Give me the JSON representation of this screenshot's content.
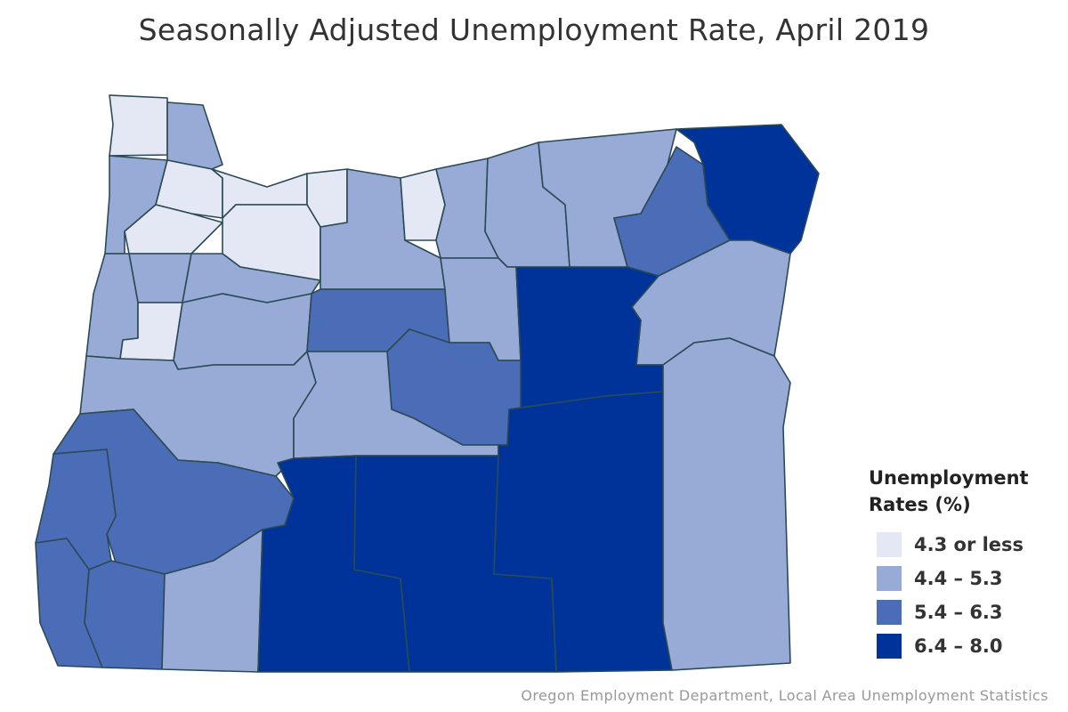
{
  "title": "Seasonally Adjusted Unemployment Rate, April 2019",
  "legend": {
    "title": "Unemployment Rates (%)",
    "items": [
      {
        "label": "4.3 or less",
        "color": "#e4e8f4"
      },
      {
        "label": "4.4 – 5.3",
        "color": "#97abd6"
      },
      {
        "label": "5.4 – 6.3",
        "color": "#4b6db8"
      },
      {
        "label": "6.4 – 8.0",
        "color": "#003399"
      }
    ]
  },
  "source": "Oregon Employment Department, Local Area Unemployment Statistics"
}
